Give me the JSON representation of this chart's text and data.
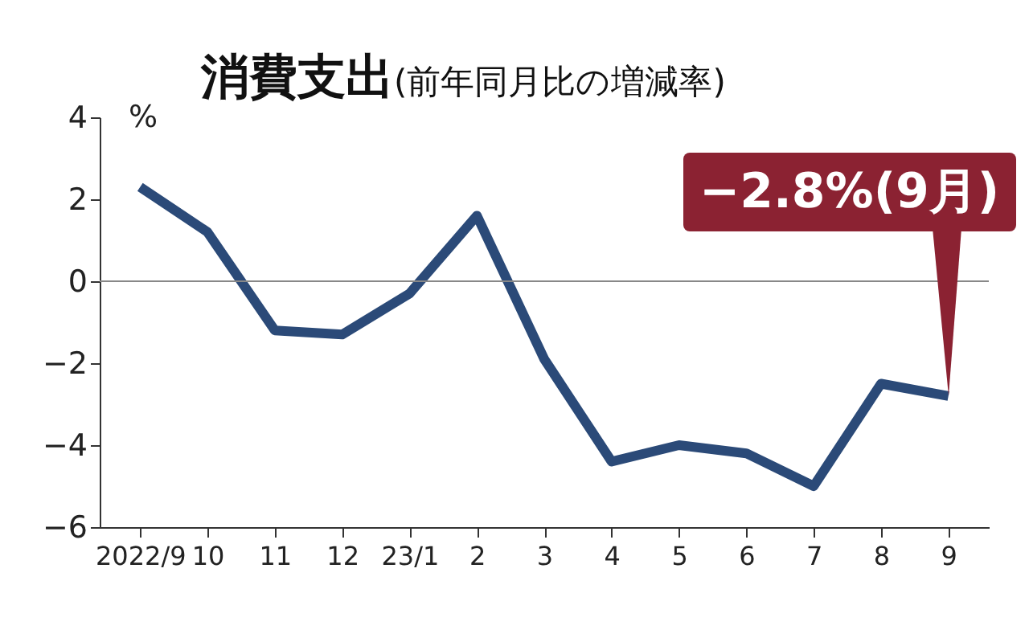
{
  "chart_data": {
    "type": "line",
    "title": "消費支出",
    "subtitle": "(前年同月比の増減率)",
    "ylabel": "%",
    "categories": [
      "2022/9",
      "10",
      "11",
      "12",
      "23/1",
      "2",
      "3",
      "4",
      "5",
      "6",
      "7",
      "8",
      "9"
    ],
    "series": [
      {
        "color": "#2b4a78",
        "values": [
          2.3,
          1.2,
          -1.2,
          -1.3,
          -0.3,
          1.6,
          -1.9,
          -4.4,
          -4.0,
          -4.2,
          -5.0,
          -2.5,
          -2.8
        ]
      }
    ],
    "ylim": [
      -6,
      4
    ],
    "yticks": [
      -6,
      -4,
      -2,
      0,
      2,
      4
    ],
    "ref_lines": [
      {
        "axis": "y",
        "value": 0,
        "color": "#888888"
      }
    ],
    "annotations": [
      {
        "text": "−2.8%(9月)",
        "x": "9",
        "y": -2.8
      }
    ],
    "grid": false,
    "legend": false,
    "marker": "none",
    "line_style": "solid"
  }
}
